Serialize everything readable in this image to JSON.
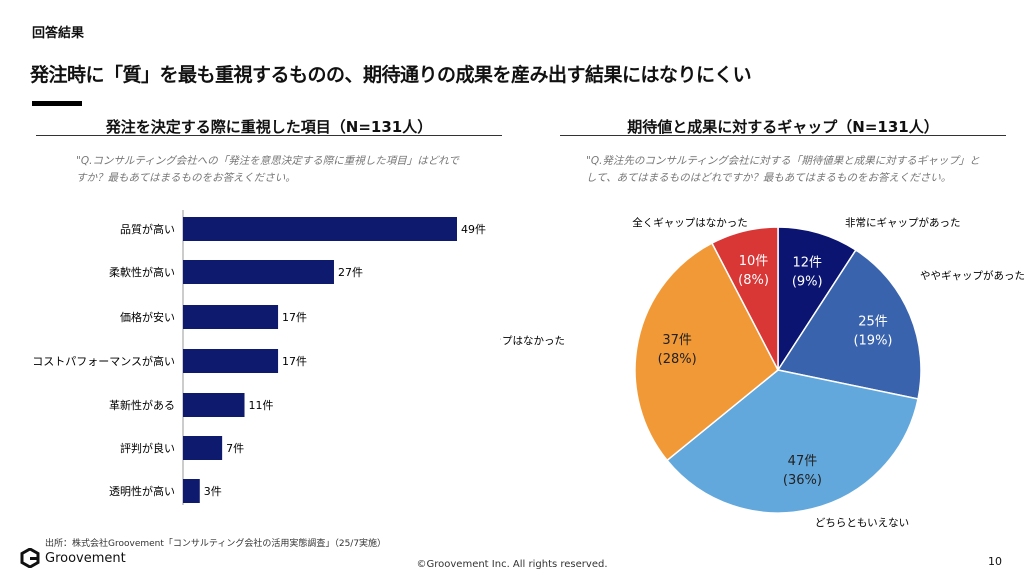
{
  "section": "回答結果",
  "title": "発注時に「質」を最も重視するものの、期待通りの成果を産み出す結果にはなりにくい",
  "source": "出所：株式会社Groovement「コンサルティング会社の活用実態調査」（25/7実施）",
  "logo": "Groovement",
  "copyright": "©Groovement Inc. All rights reserved.",
  "page_number": "10",
  "chart_data": [
    {
      "type": "bar",
      "orientation": "horizontal",
      "title": "発注を決定する際に重視した項目（N=131人）",
      "question": "\"Q.コンサルティング会社への「発注を意思決定する際に重視した項目」はどれですか？最もあてはまるものをお答えください。",
      "categories": [
        "品質が高い",
        "柔軟性が高い",
        "価格が安い",
        "コストパフォーマンスが高い",
        "革新性がある",
        "評判が良い",
        "透明性が高い"
      ],
      "values": [
        49,
        27,
        17,
        17,
        11,
        7,
        3
      ],
      "data_labels": [
        "49件",
        "27件",
        "17件",
        "17件",
        "11件",
        "7件",
        "3件"
      ],
      "color": "#0d1a6e",
      "xlim": [
        0,
        50
      ]
    },
    {
      "type": "pie",
      "title": "期待値と成果に対するギャップ（N=131人）",
      "question": "\"Q.発注先のコンサルティング会社に対する「期待値果と成果に対するギャップ」として、あてはまるものはどれですか？最もあてはまるものをお答えください。",
      "slices": [
        {
          "label": "非常にギャップがあった",
          "value": 12,
          "count": "12件",
          "pct": "(9%)",
          "color": "#0b1470"
        },
        {
          "label": "ややギャップがあった",
          "value": 25,
          "count": "25件",
          "pct": "(19%)",
          "color": "#3a63ad"
        },
        {
          "label": "どちらともいえない",
          "value": 47,
          "count": "47件",
          "pct": "(36%)",
          "color": "#62a8dc"
        },
        {
          "label": "あまりギャップはなかった",
          "value": 37,
          "count": "37件",
          "pct": "(28%)",
          "color": "#f29937"
        },
        {
          "label": "全くギャップはなかった",
          "value": 10,
          "count": "10件",
          "pct": "(8%)",
          "color": "#d93636"
        }
      ]
    }
  ]
}
